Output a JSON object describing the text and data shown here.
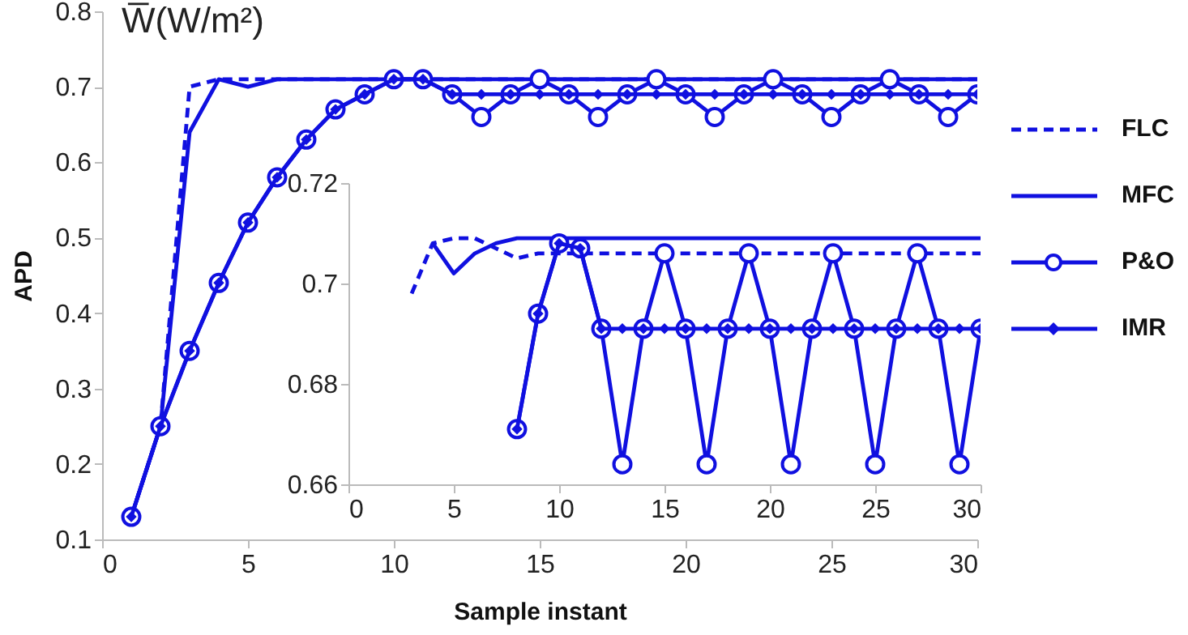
{
  "chart_data": [
    {
      "type": "line",
      "title": "W̅(W/m²)",
      "xlabel": "Sample instant",
      "ylabel": "APD",
      "x": [
        1,
        2,
        3,
        4,
        5,
        6,
        7,
        8,
        9,
        10,
        11,
        12,
        13,
        14,
        15,
        16,
        17,
        18,
        19,
        20,
        21,
        22,
        23,
        24,
        25,
        26,
        27,
        28,
        29,
        30
      ],
      "series": [
        {
          "name": "FLC",
          "color": "#1010e0",
          "line_style": "dashed",
          "marker": "none",
          "values": [
            0.13,
            0.25,
            0.7,
            0.71,
            0.71,
            0.71,
            0.71,
            0.71,
            0.71,
            0.71,
            0.71,
            0.71,
            0.71,
            0.71,
            0.71,
            0.71,
            0.71,
            0.71,
            0.71,
            0.71,
            0.71,
            0.71,
            0.71,
            0.71,
            0.71,
            0.71,
            0.71,
            0.71,
            0.71,
            0.71
          ]
        },
        {
          "name": "MFC",
          "color": "#1010e0",
          "line_style": "solid",
          "marker": "none",
          "values": [
            0.13,
            0.25,
            0.64,
            0.71,
            0.7,
            0.71,
            0.71,
            0.71,
            0.71,
            0.71,
            0.71,
            0.71,
            0.71,
            0.71,
            0.71,
            0.71,
            0.71,
            0.71,
            0.71,
            0.71,
            0.71,
            0.71,
            0.71,
            0.71,
            0.71,
            0.71,
            0.71,
            0.71,
            0.71,
            0.71
          ]
        },
        {
          "name": "P&O",
          "color": "#1010e0",
          "line_style": "solid",
          "marker": "circle",
          "values": [
            0.13,
            0.25,
            0.35,
            0.44,
            0.52,
            0.58,
            0.63,
            0.67,
            0.69,
            0.71,
            0.71,
            0.69,
            0.66,
            0.69,
            0.71,
            0.69,
            0.66,
            0.69,
            0.71,
            0.69,
            0.66,
            0.69,
            0.71,
            0.69,
            0.66,
            0.69,
            0.71,
            0.69,
            0.66,
            0.69
          ]
        },
        {
          "name": "IMR",
          "color": "#1010e0",
          "line_style": "solid",
          "marker": "diamond",
          "values": [
            0.13,
            0.25,
            0.35,
            0.44,
            0.52,
            0.58,
            0.63,
            0.67,
            0.69,
            0.71,
            0.71,
            0.69,
            0.69,
            0.69,
            0.69,
            0.69,
            0.69,
            0.69,
            0.69,
            0.69,
            0.69,
            0.69,
            0.69,
            0.69,
            0.69,
            0.69,
            0.69,
            0.69,
            0.69,
            0.69
          ]
        }
      ],
      "xlim": [
        0,
        30
      ],
      "xticks": [
        0,
        5,
        10,
        15,
        20,
        25,
        30
      ],
      "ylim": [
        0.1,
        0.8
      ],
      "yticks": [
        0.1,
        0.2,
        0.3,
        0.4,
        0.5,
        0.6,
        0.7,
        0.8
      ],
      "grid": false,
      "legend": "right"
    },
    {
      "type": "line",
      "x": [
        3,
        4,
        5,
        6,
        7,
        8,
        9,
        10,
        11,
        12,
        13,
        14,
        15,
        16,
        17,
        18,
        19,
        20,
        21,
        22,
        23,
        24,
        25,
        26,
        27,
        28,
        29,
        30
      ],
      "series": [
        {
          "color": "#1010e0",
          "line_style": "dashed",
          "marker": "none",
          "values": [
            0.698,
            0.708,
            0.709,
            0.709,
            0.707,
            0.705,
            0.706,
            0.706,
            0.706,
            0.706,
            0.706,
            0.706,
            0.706,
            0.706,
            0.706,
            0.706,
            0.706,
            0.706,
            0.706,
            0.706,
            0.706,
            0.706,
            0.706,
            0.706,
            0.706,
            0.706,
            0.706,
            0.706
          ]
        },
        {
          "color": "#1010e0",
          "line_style": "solid",
          "marker": "none",
          "values": [
            null,
            0.708,
            0.702,
            0.706,
            0.708,
            0.709,
            0.709,
            0.709,
            0.709,
            0.709,
            0.709,
            0.709,
            0.709,
            0.709,
            0.709,
            0.709,
            0.709,
            0.709,
            0.709,
            0.709,
            0.709,
            0.709,
            0.709,
            0.709,
            0.709,
            0.709,
            0.709,
            0.709
          ]
        },
        {
          "color": "#1010e0",
          "line_style": "solid",
          "marker": "circle",
          "values": [
            null,
            null,
            null,
            null,
            null,
            0.671,
            0.694,
            0.708,
            0.707,
            0.691,
            0.664,
            0.691,
            0.706,
            0.691,
            0.664,
            0.691,
            0.706,
            0.691,
            0.664,
            0.691,
            0.706,
            0.691,
            0.664,
            0.691,
            0.706,
            0.691,
            0.664,
            0.691
          ]
        },
        {
          "color": "#1010e0",
          "line_style": "solid",
          "marker": "diamond",
          "values": [
            null,
            null,
            null,
            null,
            null,
            0.671,
            0.694,
            0.708,
            0.707,
            0.691,
            0.691,
            0.691,
            0.691,
            0.691,
            0.691,
            0.691,
            0.691,
            0.691,
            0.691,
            0.691,
            0.691,
            0.691,
            0.691,
            0.691,
            0.691,
            0.691,
            0.691,
            0.691
          ]
        }
      ],
      "xlim": [
        0,
        30
      ],
      "xticks": [
        0,
        5,
        10,
        15,
        20,
        25,
        30
      ],
      "ylim": [
        0.66,
        0.72
      ],
      "yticks": [
        0.66,
        0.68,
        0.7,
        0.72
      ],
      "grid": false
    }
  ]
}
